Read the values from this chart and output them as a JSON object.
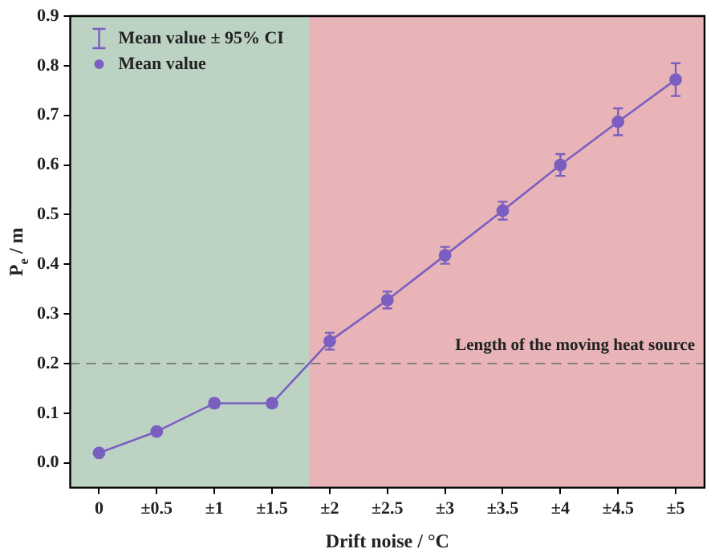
{
  "chart_data": {
    "type": "line",
    "xlabel": "Drift noise / °C",
    "ylabel": "P$_{e}$ / m",
    "x": [
      0,
      0.5,
      1,
      1.5,
      2,
      2.5,
      3,
      3.5,
      4,
      4.5,
      5
    ],
    "series": [
      {
        "name": "Mean value",
        "color": "#7b5fc0",
        "values": [
          0.02,
          0.063,
          0.12,
          0.12,
          0.245,
          0.328,
          0.418,
          0.508,
          0.6,
          0.687,
          0.772
        ],
        "errors": [
          null,
          null,
          0.008,
          null,
          0.017,
          0.017,
          0.017,
          0.018,
          0.022,
          0.027,
          0.033
        ]
      }
    ],
    "xlim": [
      -0.25,
      5.25
    ],
    "xticks": [
      0,
      {
        "value": 0.5,
        "label": "±0.5"
      },
      {
        "value": 1,
        "label": "±1"
      },
      {
        "value": 1.5,
        "label": "±1.5"
      },
      {
        "value": 2,
        "label": "±2"
      },
      {
        "value": 2.5,
        "label": "±2.5"
      },
      {
        "value": 3,
        "label": "±3"
      },
      {
        "value": 3.5,
        "label": "±3.5"
      },
      {
        "value": 4,
        "label": "±4"
      },
      {
        "value": 4.5,
        "label": "±4.5"
      },
      {
        "value": 5,
        "label": "±5"
      }
    ],
    "ylim": [
      -0.05,
      0.9
    ],
    "yticks": [
      {
        "value": 0,
        "label": "0.0"
      },
      0.1,
      0.2,
      0.3,
      0.4,
      0.5,
      0.6,
      0.7,
      0.8,
      0.9
    ],
    "bands": [
      {
        "axis": "x",
        "from": -0.25,
        "to": 1.82,
        "color": "#bcd3c4"
      },
      {
        "axis": "x",
        "from": 1.82,
        "to": 5.25,
        "color": "#e8b4b8"
      }
    ],
    "ref_lines": [
      {
        "axis": "y",
        "value": 0.2,
        "label": "Length of the moving heat source",
        "color": "#808080",
        "line_style": "dashed"
      }
    ],
    "annotations": [
      "Mean value ± 95% CI"
    ],
    "marker": "circle",
    "line_style": "solid",
    "legend": "top left"
  }
}
